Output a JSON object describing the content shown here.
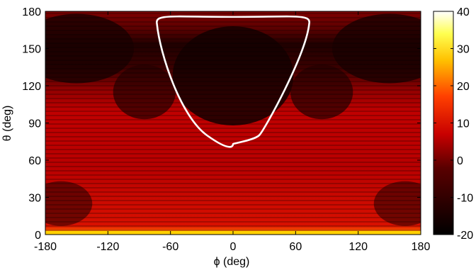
{
  "chart_data": {
    "type": "heatmap",
    "title": "",
    "xlabel": "ϕ (deg)",
    "ylabel": "θ (deg)",
    "xlim": [
      -180,
      180
    ],
    "ylim": [
      0,
      180
    ],
    "x_ticks": [
      -180,
      -120,
      -60,
      0,
      60,
      120,
      180
    ],
    "y_ticks": [
      0,
      30,
      60,
      90,
      120,
      150,
      180
    ],
    "colorbar": {
      "range": [
        -20,
        40
      ],
      "ticks": [
        -20,
        -10,
        0,
        10,
        20,
        30,
        40
      ],
      "colormap": "hot"
    },
    "contour": {
      "color": "#ffffff",
      "description_points_phi_theta": [
        [
          -73,
          170
        ],
        [
          -60,
          145
        ],
        [
          -45,
          115
        ],
        [
          -25,
          86
        ],
        [
          0,
          73
        ],
        [
          25,
          86
        ],
        [
          45,
          115
        ],
        [
          60,
          145
        ],
        [
          73,
          170
        ]
      ]
    },
    "bright_band": {
      "theta_range": [
        0,
        3
      ],
      "level": 40
    }
  },
  "colors": {
    "map_dark": "#000000",
    "map_mid": "#b00000",
    "map_bright": "#ff3000",
    "contour": "#ffffff"
  }
}
